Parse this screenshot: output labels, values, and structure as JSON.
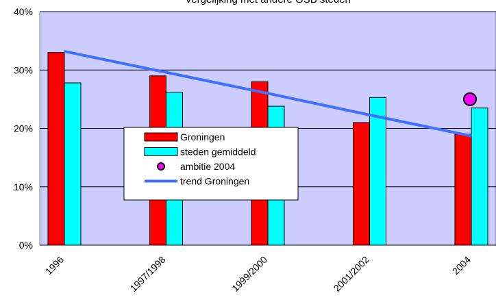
{
  "chart_data": {
    "type": "bar",
    "title": "Vergelijking met andere GSB steden",
    "categories": [
      "1996",
      "1997/1998",
      "1999/2000",
      "2001/2002",
      "2004"
    ],
    "series": [
      {
        "name": "Groningen",
        "type": "bar",
        "color": "#ff0000",
        "values": [
          33,
          29,
          28,
          21,
          19
        ]
      },
      {
        "name": "steden gemiddeld",
        "type": "bar",
        "color": "#00ffff",
        "values": [
          27.8,
          26.2,
          23.8,
          25.3,
          23.5
        ]
      },
      {
        "name": "ambitie 2004",
        "type": "scatter",
        "color": "#ff00ff",
        "values": [
          null,
          null,
          null,
          null,
          25
        ]
      },
      {
        "name": "trend Groningen",
        "type": "line",
        "color": "#3f6fff",
        "values": [
          33.2,
          29.6,
          26.0,
          22.3,
          18.7
        ]
      }
    ],
    "ylim": [
      0,
      40
    ],
    "yticks": [
      {
        "value": 0,
        "label": "0%"
      },
      {
        "value": 10,
        "label": "10%"
      },
      {
        "value": 20,
        "label": "20%"
      },
      {
        "value": 30,
        "label": "30%"
      },
      {
        "value": 40,
        "label": "40%"
      }
    ],
    "grid": true
  }
}
